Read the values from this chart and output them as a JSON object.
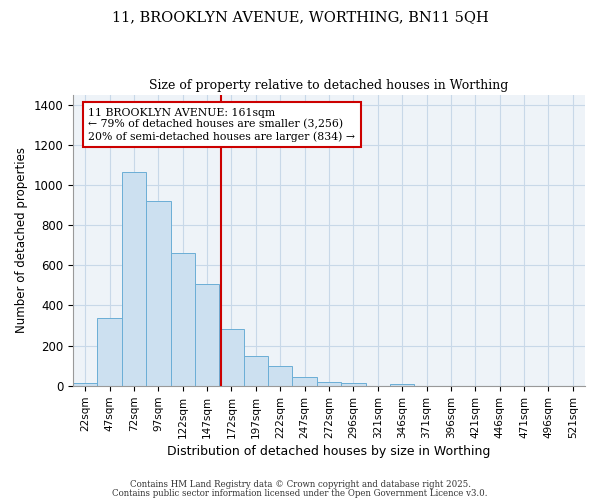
{
  "title1": "11, BROOKLYN AVENUE, WORTHING, BN11 5QH",
  "title2": "Size of property relative to detached houses in Worthing",
  "xlabel": "Distribution of detached houses by size in Worthing",
  "ylabel": "Number of detached properties",
  "categories": [
    "22sqm",
    "47sqm",
    "72sqm",
    "97sqm",
    "122sqm",
    "147sqm",
    "172sqm",
    "197sqm",
    "222sqm",
    "247sqm",
    "272sqm",
    "296sqm",
    "321sqm",
    "346sqm",
    "371sqm",
    "396sqm",
    "421sqm",
    "446sqm",
    "471sqm",
    "496sqm",
    "521sqm"
  ],
  "values": [
    15,
    335,
    1065,
    920,
    660,
    505,
    280,
    150,
    100,
    45,
    20,
    12,
    0,
    8,
    0,
    0,
    0,
    0,
    0,
    0,
    0
  ],
  "bar_color": "#cce0f0",
  "bar_edge_color": "#6baed6",
  "grid_color": "#c8d8e8",
  "background_color": "#eef3f8",
  "marker_color": "#cc0000",
  "ylim": [
    0,
    1450
  ],
  "yticks": [
    0,
    200,
    400,
    600,
    800,
    1000,
    1200,
    1400
  ],
  "annotation_title": "11 BROOKLYN AVENUE: 161sqm",
  "annotation_line1": "← 79% of detached houses are smaller (3,256)",
  "annotation_line2": "20% of semi-detached houses are larger (834) →",
  "annotation_box_color": "#ffffff",
  "annotation_border_color": "#cc0000",
  "footer1": "Contains HM Land Registry data © Crown copyright and database right 2025.",
  "footer2": "Contains public sector information licensed under the Open Government Licence v3.0."
}
